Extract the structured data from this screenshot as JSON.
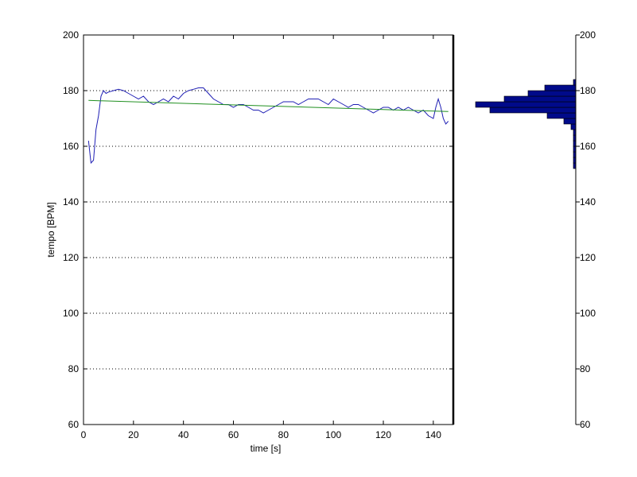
{
  "chart_data": [
    {
      "type": "line",
      "xlabel": "time [s]",
      "ylabel": "tempo [BPM]",
      "xlim": [
        0,
        148
      ],
      "ylim": [
        60,
        200
      ],
      "xticks": [
        0,
        20,
        40,
        60,
        80,
        100,
        120,
        140
      ],
      "yticks": [
        60,
        80,
        100,
        120,
        140,
        160,
        180,
        200
      ],
      "grid": "horizontal-dotted",
      "series": [
        {
          "style": "line",
          "color": "#1f1fb4",
          "x": [
            2,
            3,
            4,
            5,
            6,
            7,
            8,
            9,
            10,
            12,
            14,
            16,
            18,
            20,
            22,
            24,
            26,
            28,
            30,
            32,
            34,
            36,
            38,
            40,
            42,
            44,
            46,
            48,
            50,
            52,
            54,
            56,
            58,
            60,
            62,
            64,
            66,
            68,
            70,
            72,
            74,
            76,
            78,
            80,
            82,
            84,
            86,
            88,
            90,
            92,
            94,
            96,
            98,
            100,
            102,
            104,
            106,
            108,
            110,
            112,
            114,
            116,
            118,
            120,
            122,
            124,
            126,
            128,
            130,
            132,
            134,
            136,
            138,
            140,
            141,
            142,
            143,
            144,
            145,
            146
          ],
          "y": [
            162,
            154,
            155,
            166,
            171,
            178,
            180,
            179,
            179.5,
            180,
            180.5,
            180,
            179,
            178,
            177,
            178,
            176,
            175,
            176,
            177,
            176,
            178,
            177,
            179,
            180,
            180.5,
            181,
            181,
            179,
            177,
            176,
            175,
            175,
            174,
            175,
            175,
            174,
            173,
            173,
            172,
            173,
            174,
            175,
            176,
            176,
            176,
            175,
            176,
            177,
            177,
            177,
            176,
            175,
            177,
            176,
            175,
            174,
            175,
            175,
            174,
            173,
            172,
            173,
            174,
            174,
            173,
            174,
            173,
            174,
            173,
            172,
            173,
            171,
            170,
            174,
            177,
            174,
            170,
            168,
            169
          ]
        },
        {
          "style": "trend",
          "color": "#1f8f1f",
          "x": [
            2,
            146
          ],
          "y": [
            176.5,
            172.5
          ]
        }
      ]
    },
    {
      "type": "bar",
      "orientation": "horizontal",
      "ylim": [
        60,
        200
      ],
      "yticks": [
        60,
        80,
        100,
        120,
        140,
        160,
        180,
        200
      ],
      "color": "#000a8a",
      "bins": [
        {
          "from": 152,
          "to": 154,
          "value": 1
        },
        {
          "from": 154,
          "to": 156,
          "value": 1
        },
        {
          "from": 156,
          "to": 158,
          "value": 1
        },
        {
          "from": 158,
          "to": 160,
          "value": 1
        },
        {
          "from": 160,
          "to": 162,
          "value": 1
        },
        {
          "from": 162,
          "to": 164,
          "value": 1
        },
        {
          "from": 164,
          "to": 166,
          "value": 1
        },
        {
          "from": 166,
          "to": 168,
          "value": 2
        },
        {
          "from": 168,
          "to": 170,
          "value": 5
        },
        {
          "from": 170,
          "to": 172,
          "value": 12
        },
        {
          "from": 172,
          "to": 174,
          "value": 36
        },
        {
          "from": 174,
          "to": 176,
          "value": 42
        },
        {
          "from": 176,
          "to": 178,
          "value": 30
        },
        {
          "from": 178,
          "to": 180,
          "value": 20
        },
        {
          "from": 180,
          "to": 182,
          "value": 13
        },
        {
          "from": 182,
          "to": 184,
          "value": 1
        }
      ],
      "value_max": 42
    }
  ]
}
